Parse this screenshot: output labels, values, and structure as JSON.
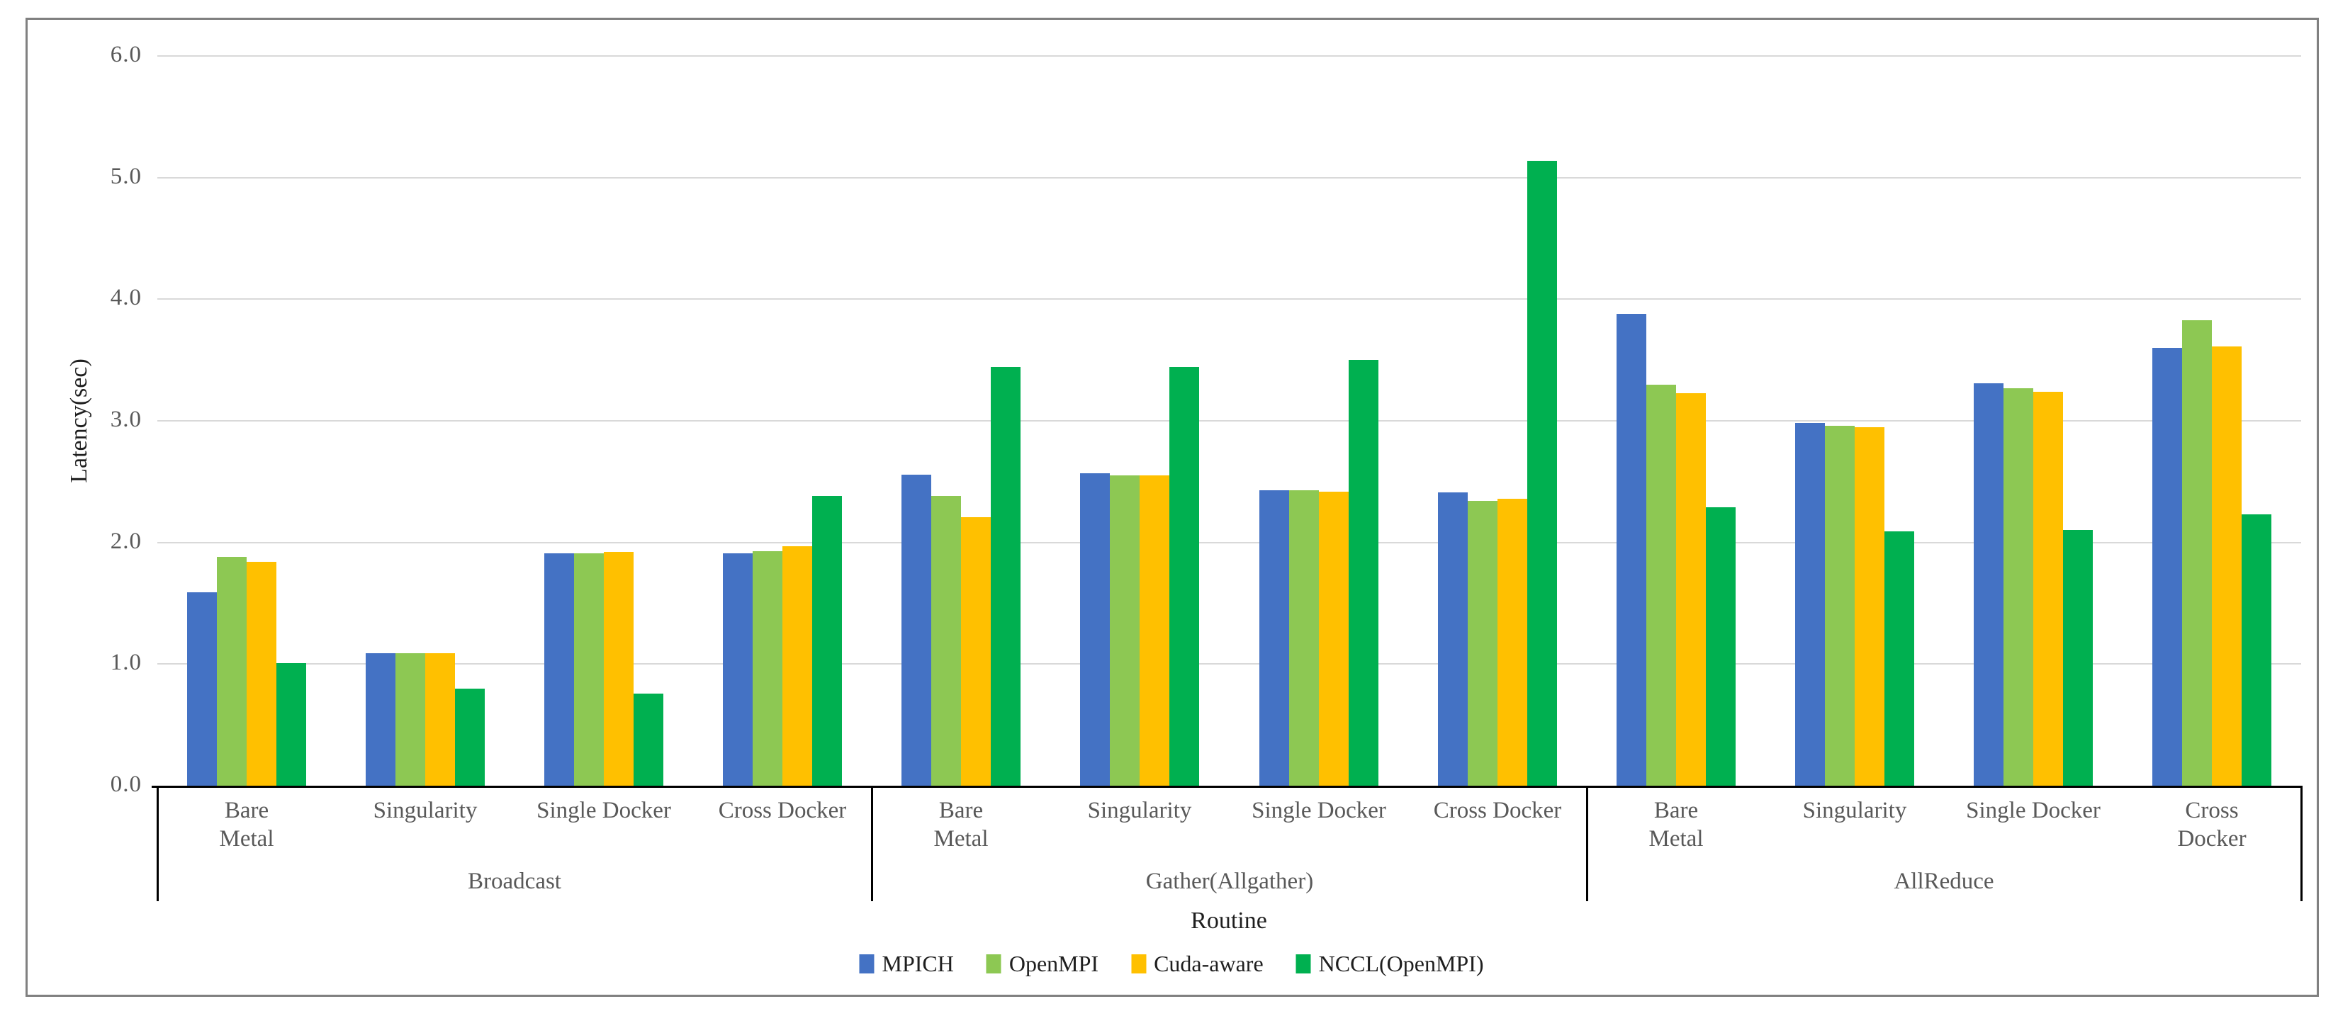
{
  "chart_data": {
    "type": "bar",
    "title": "",
    "ylabel": "Latency(sec)",
    "xlabel": "Routine",
    "ylim": [
      0,
      6
    ],
    "ytick_step": 1.0,
    "ytick_decimals": 1,
    "grid": true,
    "legend_position": "bottom",
    "groups": [
      "Broadcast",
      "Gather(Allgather)",
      "AllReduce"
    ],
    "categories": [
      "Bare Metal",
      "Singularity",
      "Single Docker",
      "Cross Docker"
    ],
    "category_display": [
      "Bare\nMetal",
      "Singularity",
      "Single Docker",
      "Cross Docker"
    ],
    "series": [
      {
        "name": "MPICH",
        "color": "#4472C4",
        "values": {
          "Broadcast": [
            1.59,
            1.09,
            1.91,
            1.91
          ],
          "Gather(Allgather)": [
            2.56,
            2.57,
            2.43,
            2.41
          ],
          "AllReduce": [
            3.88,
            2.98,
            3.31,
            3.6
          ]
        }
      },
      {
        "name": "OpenMPI",
        "color": "#8DC853",
        "values": {
          "Broadcast": [
            1.88,
            1.09,
            1.91,
            1.93
          ],
          "Gather(Allgather)": [
            2.38,
            2.55,
            2.43,
            2.34
          ],
          "AllReduce": [
            3.3,
            2.96,
            3.27,
            3.83
          ]
        }
      },
      {
        "name": "Cuda-aware",
        "color": "#FFC000",
        "values": {
          "Broadcast": [
            1.84,
            1.09,
            1.92,
            1.97
          ],
          "Gather(Allgather)": [
            2.21,
            2.55,
            2.42,
            2.36
          ],
          "AllReduce": [
            3.23,
            2.95,
            3.24,
            3.61
          ]
        }
      },
      {
        "name": "NCCL(OpenMPI)",
        "color": "#00B050",
        "values": {
          "Broadcast": [
            1.01,
            0.8,
            0.76,
            2.38
          ],
          "Gather(Allgather)": [
            3.44,
            3.44,
            3.5,
            5.14
          ],
          "AllReduce": [
            2.29,
            2.09,
            2.1,
            2.23
          ]
        }
      }
    ],
    "colors": {
      "gridline": "#D9D9D9",
      "axis_line": "#000000",
      "tick_text": "#595959",
      "category_text": "#595959",
      "title_text": "#1F1F1F",
      "outer_border": "#808080",
      "background": "#FFFFFF"
    }
  }
}
